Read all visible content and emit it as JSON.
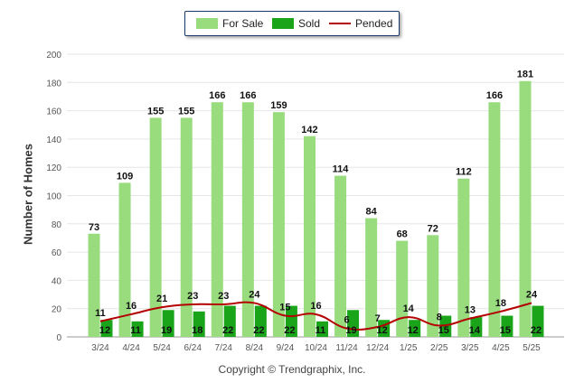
{
  "colors": {
    "for_sale": "#98dc7e",
    "sold": "#1aa41a",
    "pended": "#b40000"
  },
  "legend": {
    "for_sale": "For Sale",
    "sold": "Sold",
    "pended": "Pended"
  },
  "copyright": "Copyright © Trendgraphix, Inc.",
  "chart_data": {
    "type": "bar",
    "title": "",
    "xlabel": "",
    "ylabel": "Number of Homes",
    "ylim": [
      0,
      200
    ],
    "yticks": [
      0,
      20,
      40,
      60,
      80,
      100,
      120,
      140,
      160,
      180,
      200
    ],
    "grid": true,
    "legend_position": "top-center",
    "categories": [
      "3/24",
      "4/24",
      "5/24",
      "6/24",
      "7/24",
      "8/24",
      "9/24",
      "10/24",
      "11/24",
      "12/24",
      "1/25",
      "2/25",
      "3/25",
      "4/25",
      "5/25"
    ],
    "series": [
      {
        "name": "For Sale",
        "type": "bar",
        "values": [
          73,
          109,
          155,
          155,
          166,
          166,
          159,
          142,
          114,
          84,
          68,
          72,
          112,
          166,
          181
        ]
      },
      {
        "name": "Sold",
        "type": "bar",
        "values": [
          12,
          11,
          19,
          18,
          22,
          22,
          22,
          11,
          19,
          12,
          12,
          15,
          14,
          15,
          22
        ]
      },
      {
        "name": "Pended",
        "type": "line",
        "values": [
          11,
          16,
          21,
          23,
          23,
          24,
          15,
          16,
          6,
          7,
          14,
          8,
          13,
          18,
          24
        ]
      }
    ]
  }
}
